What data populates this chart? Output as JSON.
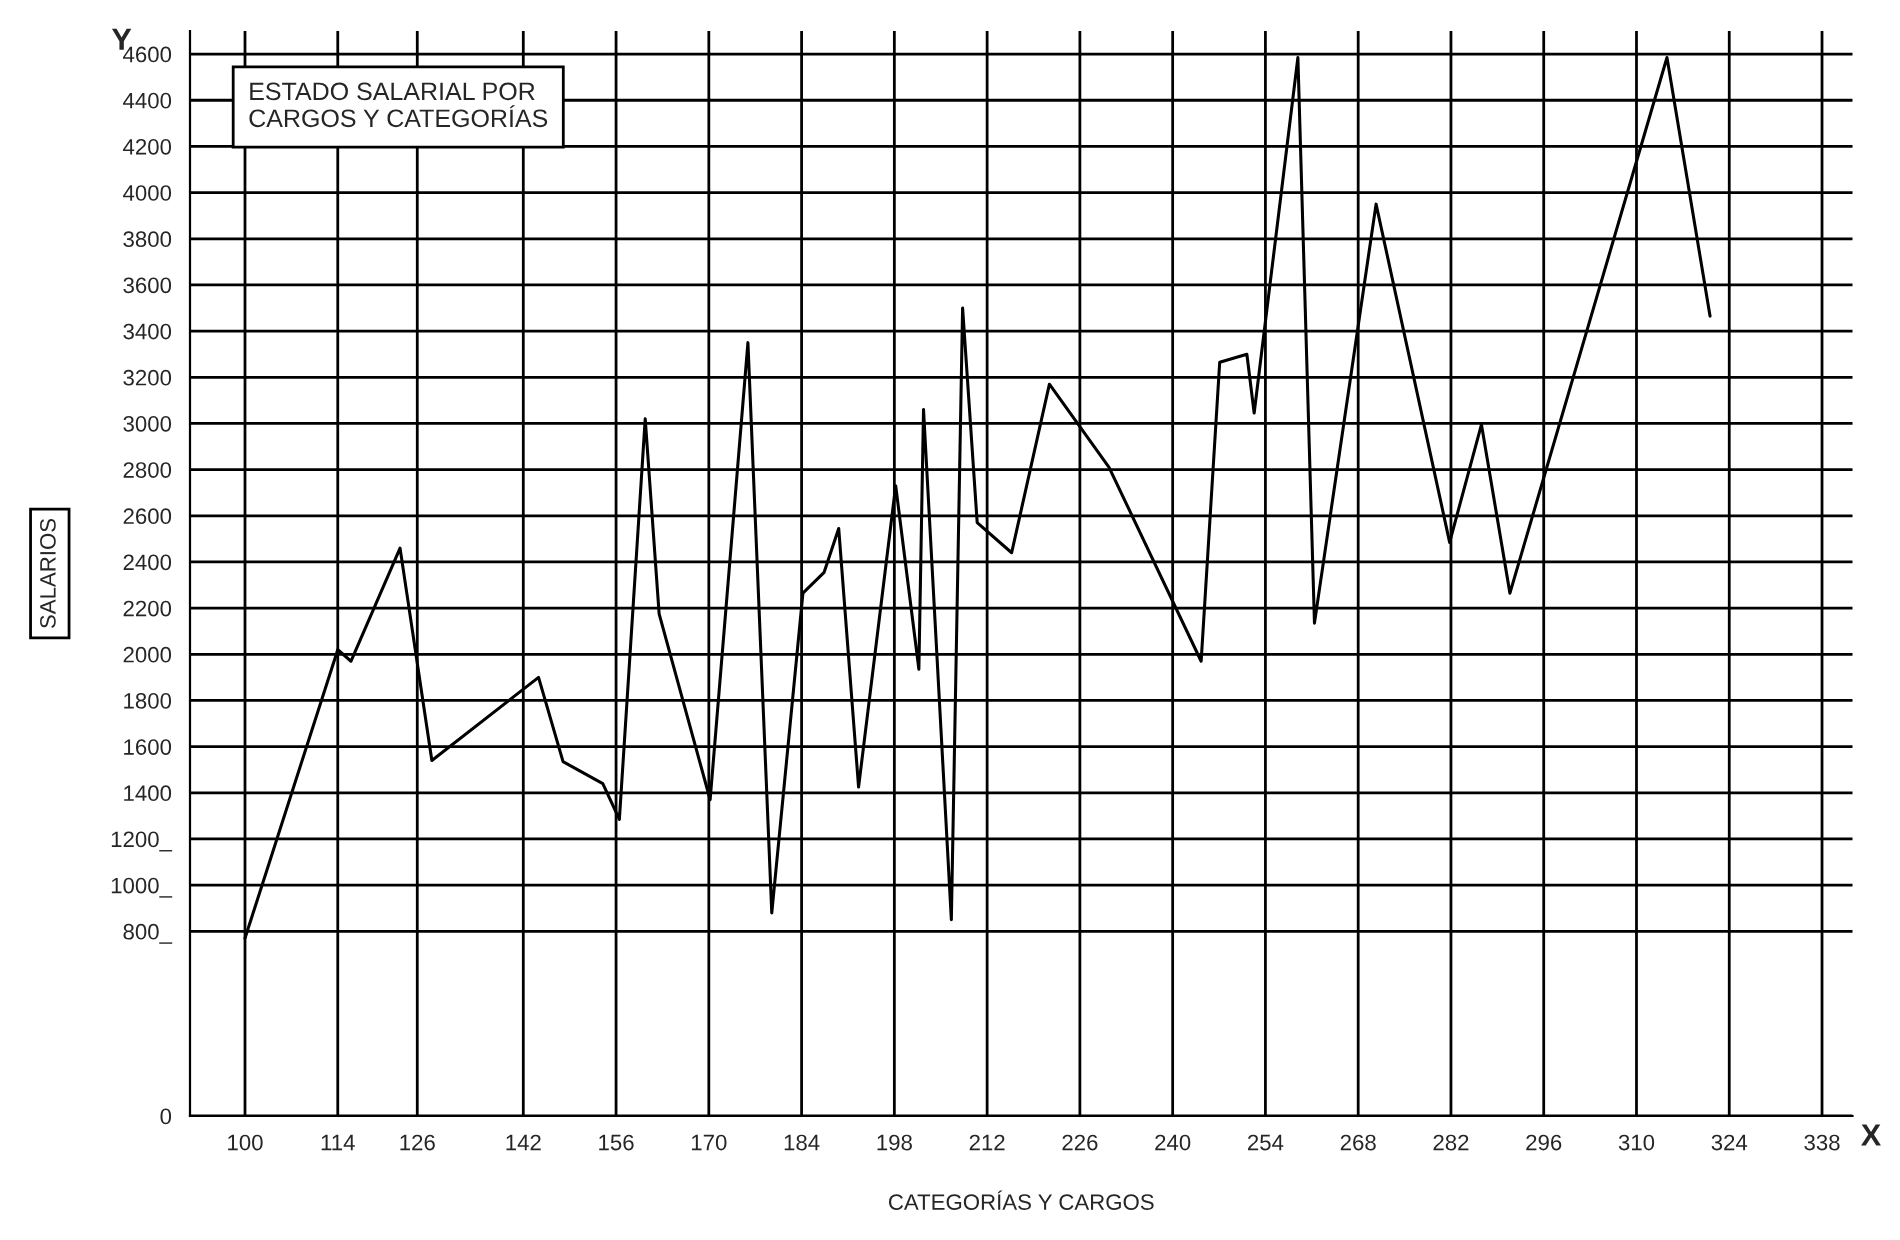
{
  "chart_data": {
    "type": "line",
    "title": "ESTADO SALARIAL POR\nCARGOS Y CATEGORÍAS",
    "xlabel": "CATEGORÍAS Y CARGOS",
    "ylabel": "SALARIOS",
    "annotations": [
      "Y",
      "X"
    ],
    "series": [
      {
        "color": "#000000",
        "x": [
          100,
          114,
          116,
          123.4,
          128.2,
          144.3,
          148,
          154,
          156.5,
          160.4,
          162.5,
          170.2,
          175.9,
          179.5,
          184.2,
          187.4,
          189.6,
          192.6,
          198.2,
          201.7,
          202.4,
          206.6,
          208.3,
          210.5,
          215.7,
          221.4,
          230.4,
          244.3,
          247.1,
          251.2,
          252.3,
          258.9,
          261.4,
          270.7,
          281.8,
          286.6,
          290.9,
          314.6,
          321.1
        ],
        "values": [
          770,
          2020,
          1970,
          2460,
          1540,
          1900,
          1535,
          1440,
          1285,
          3020,
          2175,
          1370,
          3350,
          880,
          2265,
          2355,
          2545,
          1425,
          2730,
          1935,
          3060,
          850,
          3500,
          2570,
          2440,
          3170,
          2810,
          1970,
          3265,
          3300,
          3045,
          4585,
          2135,
          3950,
          2485,
          2995,
          2265,
          4585,
          3465
        ]
      }
    ],
    "xlim": [
      91.7,
      342.6
    ],
    "ylim": [
      0,
      4700
    ],
    "xticks": [
      100,
      114,
      126,
      142,
      156,
      170,
      184,
      198,
      212,
      226,
      240,
      254,
      268,
      282,
      296,
      310,
      324,
      338
    ],
    "yticks": [
      0,
      {
        "value": 800,
        "label": "800_"
      },
      {
        "value": 1000,
        "label": "1000_"
      },
      {
        "value": 1200,
        "label": "1200_"
      },
      1400,
      1600,
      1800,
      2000,
      2200,
      2400,
      2600,
      2800,
      3000,
      3200,
      3400,
      3600,
      3800,
      4000,
      4200,
      4400,
      4600
    ],
    "grid": true,
    "legend": false,
    "marker": "none",
    "line_style": "solid"
  }
}
